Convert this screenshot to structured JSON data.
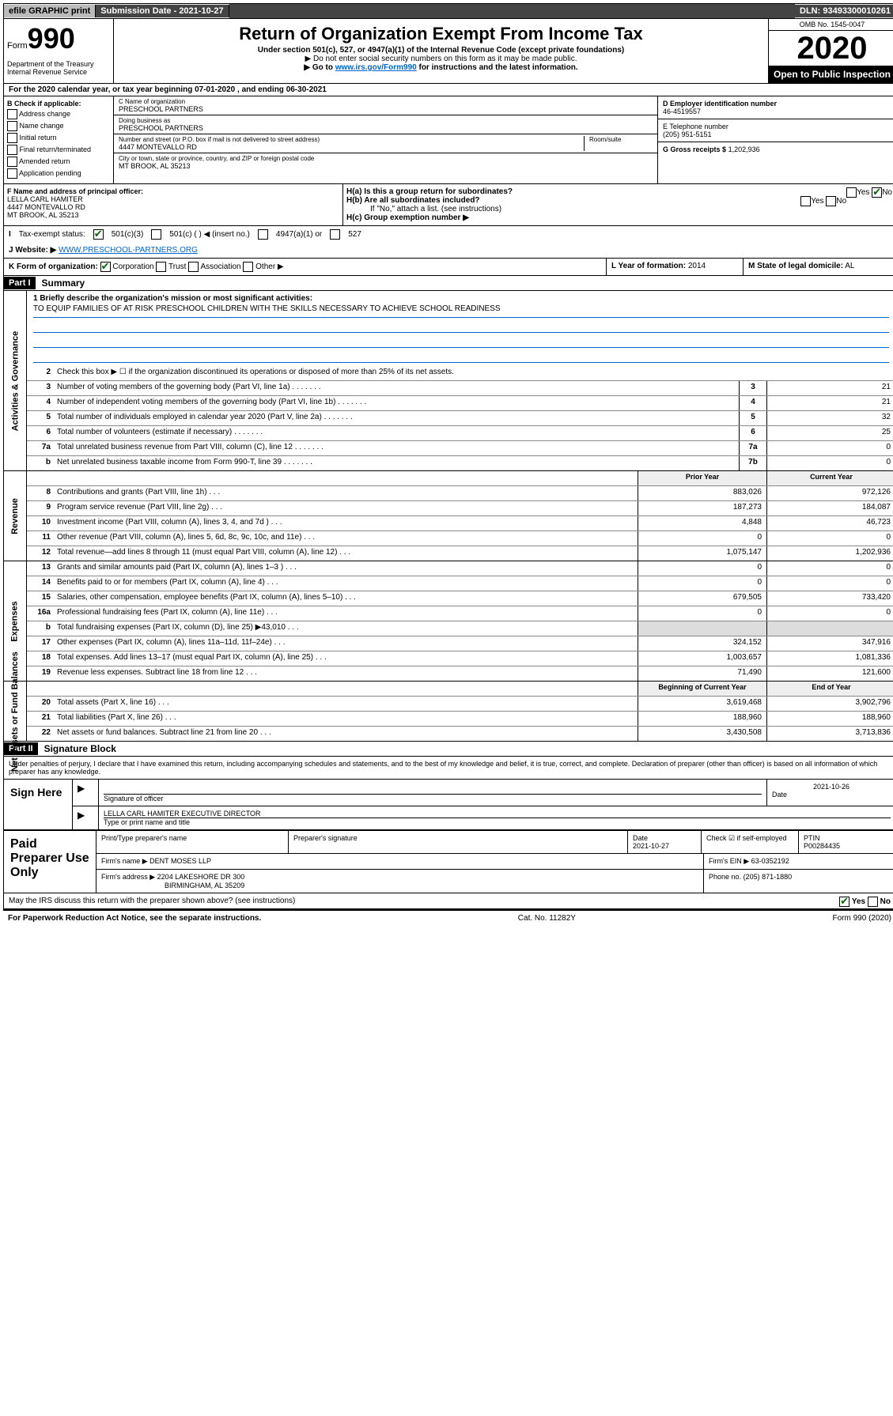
{
  "topbar": {
    "efile": "efile GRAPHIC print",
    "submission_label": "Submission Date - 2021-10-27",
    "dln": "DLN: 93493300010261"
  },
  "header": {
    "form_prefix": "Form",
    "form_number": "990",
    "department": "Department of the Treasury\nInternal Revenue Service",
    "title": "Return of Organization Exempt From Income Tax",
    "subtitle1": "Under section 501(c), 527, or 4947(a)(1) of the Internal Revenue Code (except private foundations)",
    "subtitle2": "▶ Do not enter social security numbers on this form as it may be made public.",
    "subtitle3_pre": "▶ Go to ",
    "subtitle3_link": "www.irs.gov/Form990",
    "subtitle3_post": " for instructions and the latest information.",
    "omb": "OMB No. 1545-0047",
    "year": "2020",
    "inspection": "Open to Public Inspection"
  },
  "period": {
    "text": "For the 2020 calendar year, or tax year beginning 07-01-2020   , and ending 06-30-2021"
  },
  "sectionB": {
    "heading": "B Check if applicable:",
    "items": [
      "Address change",
      "Name change",
      "Initial return",
      "Final return/terminated",
      "Amended return",
      "Application pending"
    ]
  },
  "sectionC": {
    "name_label": "C Name of organization",
    "name": "PRESCHOOL PARTNERS",
    "dba_label": "Doing business as",
    "dba": "PRESCHOOL PARTNERS",
    "addr_label": "Number and street (or P.O. box if mail is not delivered to street address)",
    "room_label": "Room/suite",
    "address": "4447 MONTEVALLO RD",
    "city_label": "City or town, state or province, country, and ZIP or foreign postal code",
    "city": "MT BROOK, AL  35213"
  },
  "sectionD": {
    "label": "D Employer identification number",
    "value": "46-4519557"
  },
  "sectionE": {
    "label": "E Telephone number",
    "value": "(205) 951-5151"
  },
  "sectionG": {
    "label": "G Gross receipts $",
    "value": "1,202,936"
  },
  "sectionF": {
    "label": "F Name and address of principal officer:",
    "name": "LELLA CARL HAMITER",
    "addr1": "4447 MONTEVALLO RD",
    "addr2": "MT BROOK, AL  35213"
  },
  "sectionH": {
    "a_label": "H(a)  Is this a group return for subordinates?",
    "b_label": "H(b)  Are all subordinates included?",
    "b_note": "If \"No,\" attach a list. (see instructions)",
    "c_label": "H(c)  Group exemption number ▶",
    "yes": "Yes",
    "no": "No"
  },
  "sectionI": {
    "label": "Tax-exempt status:",
    "opt1": "501(c)(3)",
    "opt2": "501(c) (    ) ◀ (insert no.)",
    "opt3": "4947(a)(1) or",
    "opt4": "527"
  },
  "sectionJ": {
    "label": "Website: ▶",
    "value": "WWW.PRESCHOOL-PARTNERS.ORG"
  },
  "sectionK": {
    "label": "K Form of organization:",
    "opts": [
      "Corporation",
      "Trust",
      "Association",
      "Other ▶"
    ]
  },
  "sectionL": {
    "label": "L Year of formation:",
    "value": "2014"
  },
  "sectionM": {
    "label": "M State of legal domicile:",
    "value": "AL"
  },
  "part1": {
    "tag": "Part I",
    "title": "Summary",
    "line1_label": "1  Briefly describe the organization's mission or most significant activities:",
    "mission": "TO EQUIP FAMILIES OF AT RISK PRESCHOOL CHILDREN WITH THE SKILLS NECESSARY TO ACHIEVE SCHOOL READINESS",
    "line2": "Check this box ▶ ☐  if the organization discontinued its operations or disposed of more than 25% of its net assets.",
    "governance_label": "Activities & Governance",
    "revenue_label": "Revenue",
    "expenses_label": "Expenses",
    "netassets_label": "Net Assets or Fund Balances",
    "prior_year": "Prior Year",
    "current_year": "Current Year",
    "begin_year": "Beginning of Current Year",
    "end_year": "End of Year",
    "rows_gov": [
      {
        "n": "3",
        "d": "Number of voting members of the governing body (Part VI, line 1a)",
        "box": "3",
        "v": "21"
      },
      {
        "n": "4",
        "d": "Number of independent voting members of the governing body (Part VI, line 1b)",
        "box": "4",
        "v": "21"
      },
      {
        "n": "5",
        "d": "Total number of individuals employed in calendar year 2020 (Part V, line 2a)",
        "box": "5",
        "v": "32"
      },
      {
        "n": "6",
        "d": "Total number of volunteers (estimate if necessary)",
        "box": "6",
        "v": "25"
      },
      {
        "n": "7a",
        "d": "Total unrelated business revenue from Part VIII, column (C), line 12",
        "box": "7a",
        "v": "0"
      },
      {
        "n": "b",
        "d": "Net unrelated business taxable income from Form 990-T, line 39",
        "box": "7b",
        "v": "0"
      }
    ],
    "rows_rev": [
      {
        "n": "8",
        "d": "Contributions and grants (Part VIII, line 1h)",
        "p": "883,026",
        "c": "972,126"
      },
      {
        "n": "9",
        "d": "Program service revenue (Part VIII, line 2g)",
        "p": "187,273",
        "c": "184,087"
      },
      {
        "n": "10",
        "d": "Investment income (Part VIII, column (A), lines 3, 4, and 7d )",
        "p": "4,848",
        "c": "46,723"
      },
      {
        "n": "11",
        "d": "Other revenue (Part VIII, column (A), lines 5, 6d, 8c, 9c, 10c, and 11e)",
        "p": "0",
        "c": "0"
      },
      {
        "n": "12",
        "d": "Total revenue—add lines 8 through 11 (must equal Part VIII, column (A), line 12)",
        "p": "1,075,147",
        "c": "1,202,936"
      }
    ],
    "rows_exp": [
      {
        "n": "13",
        "d": "Grants and similar amounts paid (Part IX, column (A), lines 1–3 )",
        "p": "0",
        "c": "0"
      },
      {
        "n": "14",
        "d": "Benefits paid to or for members (Part IX, column (A), line 4)",
        "p": "0",
        "c": "0"
      },
      {
        "n": "15",
        "d": "Salaries, other compensation, employee benefits (Part IX, column (A), lines 5–10)",
        "p": "679,505",
        "c": "733,420"
      },
      {
        "n": "16a",
        "d": "Professional fundraising fees (Part IX, column (A), line 11e)",
        "p": "0",
        "c": "0"
      },
      {
        "n": "b",
        "d": "Total fundraising expenses (Part IX, column (D), line 25) ▶43,010",
        "p": "",
        "c": "",
        "shaded": true
      },
      {
        "n": "17",
        "d": "Other expenses (Part IX, column (A), lines 11a–11d, 11f–24e)",
        "p": "324,152",
        "c": "347,916"
      },
      {
        "n": "18",
        "d": "Total expenses. Add lines 13–17 (must equal Part IX, column (A), line 25)",
        "p": "1,003,657",
        "c": "1,081,336"
      },
      {
        "n": "19",
        "d": "Revenue less expenses. Subtract line 18 from line 12",
        "p": "71,490",
        "c": "121,600"
      }
    ],
    "rows_net": [
      {
        "n": "20",
        "d": "Total assets (Part X, line 16)",
        "p": "3,619,468",
        "c": "3,902,796"
      },
      {
        "n": "21",
        "d": "Total liabilities (Part X, line 26)",
        "p": "188,960",
        "c": "188,960"
      },
      {
        "n": "22",
        "d": "Net assets or fund balances. Subtract line 21 from line 20",
        "p": "3,430,508",
        "c": "3,713,836"
      }
    ]
  },
  "part2": {
    "tag": "Part II",
    "title": "Signature Block",
    "perjury": "Under penalties of perjury, I declare that I have examined this return, including accompanying schedules and statements, and to the best of my knowledge and belief, it is true, correct, and complete. Declaration of preparer (other than officer) is based on all information of which preparer has any knowledge.",
    "sign_here": "Sign Here",
    "sig_officer": "Signature of officer",
    "date": "Date",
    "date_val": "2021-10-26",
    "officer_name": "LELLA CARL HAMITER  EXECUTIVE DIRECTOR",
    "name_title": "Type or print name and title",
    "paid": "Paid Preparer Use Only",
    "prep_name_lbl": "Print/Type preparer's name",
    "prep_sig_lbl": "Preparer's signature",
    "prep_date_lbl": "Date",
    "prep_date": "2021-10-27",
    "check_self": "Check ☑ if self-employed",
    "ptin_lbl": "PTIN",
    "ptin": "P00284435",
    "firm_name_lbl": "Firm's name    ▶",
    "firm_name": "DENT MOSES LLP",
    "firm_ein_lbl": "Firm's EIN ▶",
    "firm_ein": "63-0352192",
    "firm_addr_lbl": "Firm's address ▶",
    "firm_addr": "2204 LAKESHORE DR 300",
    "firm_city": "BIRMINGHAM, AL  35209",
    "phone_lbl": "Phone no.",
    "phone": "(205) 871-1880",
    "discuss": "May the IRS discuss this return with the preparer shown above? (see instructions)",
    "yes": "Yes",
    "no": "No"
  },
  "footer": {
    "notice": "For Paperwork Reduction Act Notice, see the separate instructions.",
    "cat": "Cat. No. 11282Y",
    "form": "Form 990 (2020)"
  }
}
